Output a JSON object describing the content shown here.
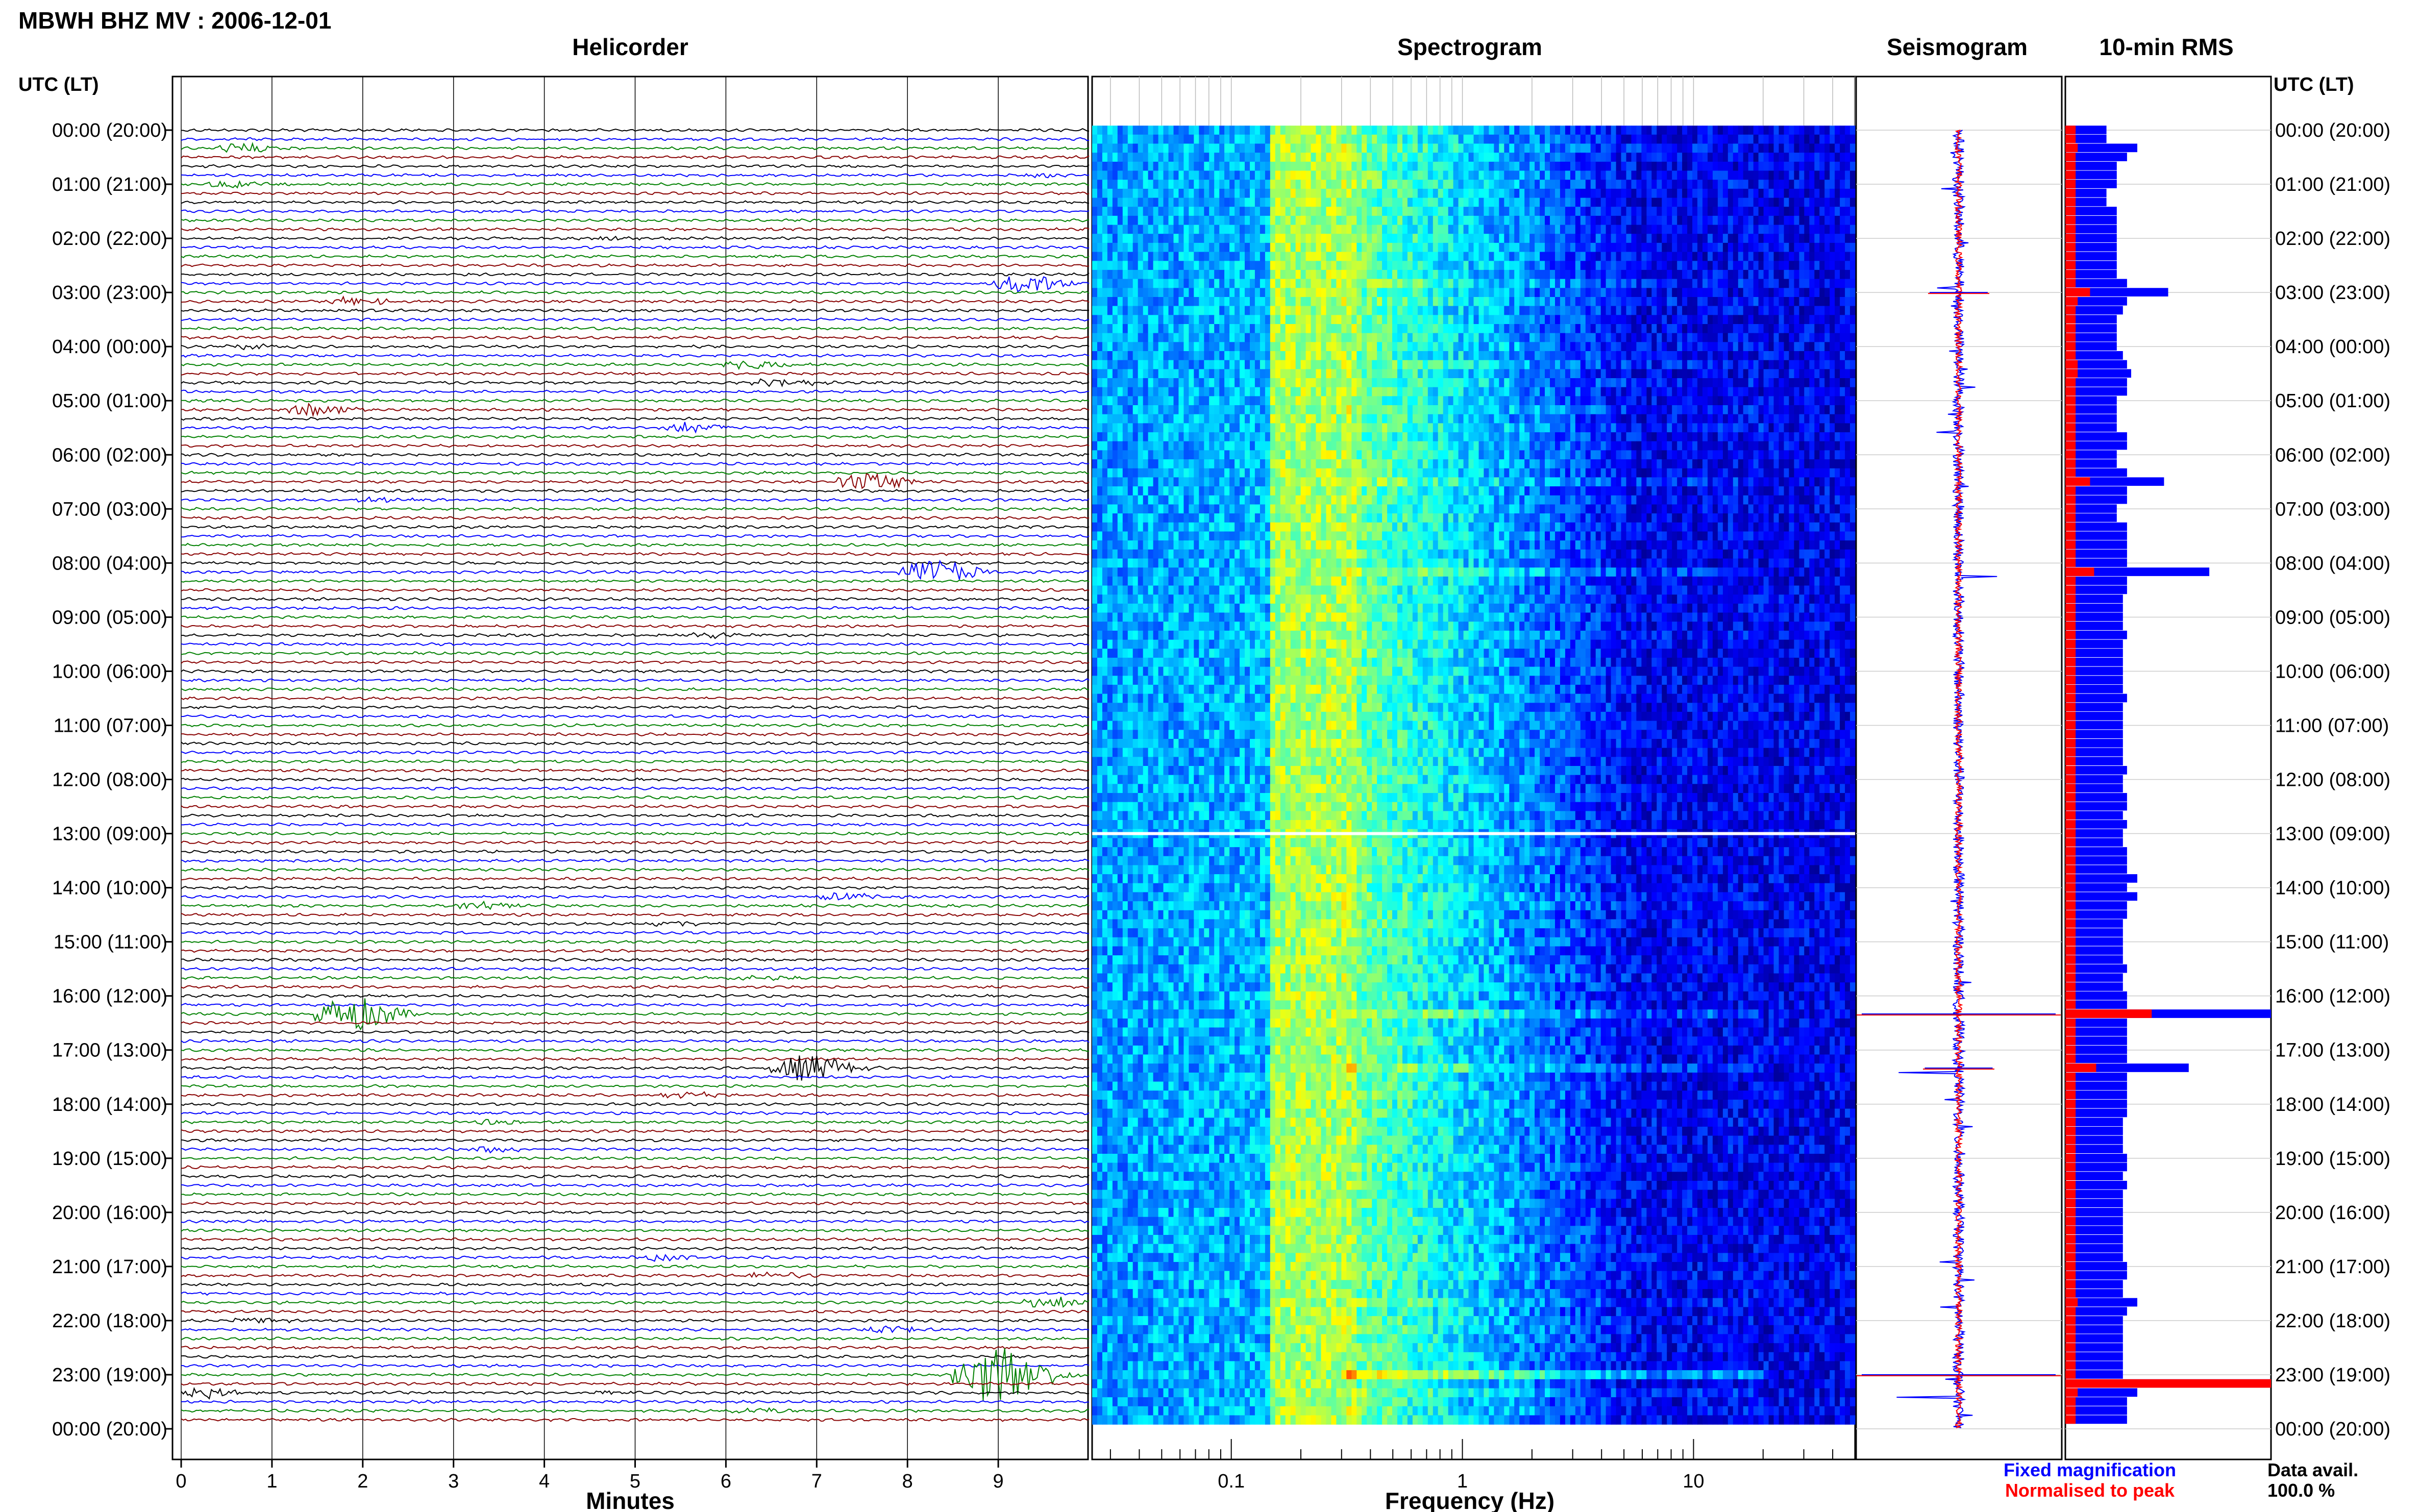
{
  "header": {
    "station_title": "MBWH BHZ MV : 2006-12-01"
  },
  "panels": {
    "helicorder": "Helicorder",
    "spectrogram": "Spectrogram",
    "seismogram": "Seismogram",
    "rms": "10-min RMS"
  },
  "time_axis_label": "UTC (LT)",
  "chart_data": [
    {
      "type": "line",
      "name": "helicorder",
      "title": "Helicorder",
      "xlabel": "Minutes",
      "ylabel": "UTC (LT)",
      "xlim": [
        0,
        10
      ],
      "x_ticks": [
        "0",
        "1",
        "2",
        "3",
        "4",
        "5",
        "6",
        "7",
        "8",
        "9"
      ],
      "row_minutes": 10,
      "rows": 144,
      "trace_colors": [
        "#000000",
        "#0000ff",
        "#008000",
        "#880000"
      ],
      "hour_labels": [
        "00:00 (20:00)",
        "01:00 (21:00)",
        "02:00 (22:00)",
        "03:00 (23:00)",
        "04:00 (00:00)",
        "05:00 (01:00)",
        "06:00 (02:00)",
        "07:00 (03:00)",
        "08:00 (04:00)",
        "09:00 (05:00)",
        "10:00 (06:00)",
        "11:00 (07:00)",
        "12:00 (08:00)",
        "13:00 (09:00)",
        "14:00 (10:00)",
        "15:00 (11:00)",
        "16:00 (12:00)",
        "17:00 (13:00)",
        "18:00 (14:00)",
        "19:00 (15:00)",
        "20:00 (16:00)",
        "21:00 (17:00)",
        "22:00 (18:00)",
        "23:00 (19:00)",
        "00:00 (20:00)"
      ],
      "events": [
        {
          "row": 2,
          "minute": 0.7,
          "amp": 1.5
        },
        {
          "row": 5,
          "minute": 9.5,
          "amp": 0.5
        },
        {
          "row": 6,
          "minute": 0.6,
          "amp": 1.2
        },
        {
          "row": 12,
          "minute": 4.8,
          "amp": 0.6
        },
        {
          "row": 17,
          "minute": 9.3,
          "amp": 2.8
        },
        {
          "row": 19,
          "minute": 1.9,
          "amp": 1.4
        },
        {
          "row": 24,
          "minute": 0.8,
          "amp": 1.1
        },
        {
          "row": 26,
          "minute": 6.3,
          "amp": 1.6
        },
        {
          "row": 28,
          "minute": 6.6,
          "amp": 1.3
        },
        {
          "row": 31,
          "minute": 1.5,
          "amp": 2.0
        },
        {
          "row": 33,
          "minute": 5.6,
          "amp": 1.6
        },
        {
          "row": 39,
          "minute": 7.6,
          "amp": 3.0
        },
        {
          "row": 41,
          "minute": 2.2,
          "amp": 0.8
        },
        {
          "row": 49,
          "minute": 8.3,
          "amp": 4.0
        },
        {
          "row": 56,
          "minute": 5.8,
          "amp": 0.9
        },
        {
          "row": 85,
          "minute": 7.3,
          "amp": 1.2
        },
        {
          "row": 86,
          "minute": 3.3,
          "amp": 1.4
        },
        {
          "row": 88,
          "minute": 5.4,
          "amp": 0.9
        },
        {
          "row": 94,
          "minute": 6.3,
          "amp": 0.7
        },
        {
          "row": 98,
          "minute": 1.9,
          "amp": 5.5
        },
        {
          "row": 104,
          "minute": 6.9,
          "amp": 4.2
        },
        {
          "row": 107,
          "minute": 5.6,
          "amp": 0.9
        },
        {
          "row": 110,
          "minute": 3.4,
          "amp": 0.9
        },
        {
          "row": 113,
          "minute": 3.4,
          "amp": 0.9
        },
        {
          "row": 125,
          "minute": 5.3,
          "amp": 1.0
        },
        {
          "row": 127,
          "minute": 6.5,
          "amp": 1.2
        },
        {
          "row": 130,
          "minute": 9.6,
          "amp": 1.8
        },
        {
          "row": 132,
          "minute": 0.8,
          "amp": 0.8
        },
        {
          "row": 133,
          "minute": 7.8,
          "amp": 1.0
        },
        {
          "row": 138,
          "minute": 9.0,
          "amp": 9.0
        },
        {
          "row": 140,
          "minute": 0.2,
          "amp": 1.8
        },
        {
          "row": 140,
          "minute": 4.7,
          "amp": 0.6
        },
        {
          "row": 142,
          "minute": 6.3,
          "amp": 1.1
        }
      ]
    },
    {
      "type": "heatmap",
      "name": "spectrogram",
      "title": "Spectrogram",
      "xlabel": "Frequency (Hz)",
      "x_scale": "log",
      "xlim": [
        0.025,
        50
      ],
      "x_ticks": [
        "0.1",
        "1",
        "10"
      ],
      "x_tick_values": [
        0.1,
        1,
        10
      ],
      "colormap": [
        "#00008f",
        "#0000ff",
        "#0080ff",
        "#00ffff",
        "#80ff80",
        "#ffff00",
        "#ff8000",
        "#ff0000"
      ],
      "peak_band_hz": [
        0.15,
        0.35
      ],
      "gap_row_utc_hour": 13
    },
    {
      "type": "line",
      "name": "seismogram",
      "title": "Seismogram",
      "series": [
        {
          "name": "Fixed magnification",
          "color": "#0000ff"
        },
        {
          "name": "Normalised to peak",
          "color": "#ff0000"
        }
      ]
    },
    {
      "type": "bar",
      "name": "rms",
      "title": "10-min RMS",
      "orientation": "horizontal",
      "xlim": [
        0,
        1
      ],
      "blue_rms": [
        0.2,
        0.2,
        0.35,
        0.3,
        0.25,
        0.25,
        0.25,
        0.2,
        0.2,
        0.25,
        0.25,
        0.25,
        0.25,
        0.25,
        0.25,
        0.25,
        0.25,
        0.3,
        0.5,
        0.3,
        0.28,
        0.25,
        0.25,
        0.25,
        0.25,
        0.28,
        0.3,
        0.32,
        0.3,
        0.3,
        0.25,
        0.25,
        0.25,
        0.25,
        0.3,
        0.3,
        0.25,
        0.25,
        0.3,
        0.48,
        0.3,
        0.3,
        0.25,
        0.25,
        0.3,
        0.3,
        0.3,
        0.3,
        0.3,
        0.7,
        0.3,
        0.3,
        0.28,
        0.28,
        0.28,
        0.28,
        0.3,
        0.28,
        0.28,
        0.28,
        0.28,
        0.28,
        0.28,
        0.3,
        0.28,
        0.28,
        0.28,
        0.28,
        0.28,
        0.28,
        0.28,
        0.3,
        0.28,
        0.28,
        0.3,
        0.3,
        0.28,
        0.3,
        0.28,
        0.28,
        0.3,
        0.3,
        0.3,
        0.35,
        0.3,
        0.35,
        0.3,
        0.3,
        0.28,
        0.28,
        0.28,
        0.28,
        0.28,
        0.3,
        0.28,
        0.28,
        0.3,
        0.3,
        1.0,
        0.3,
        0.3,
        0.3,
        0.3,
        0.3,
        0.6,
        0.3,
        0.3,
        0.3,
        0.3,
        0.3,
        0.28,
        0.28,
        0.28,
        0.28,
        0.3,
        0.3,
        0.28,
        0.3,
        0.28,
        0.28,
        0.28,
        0.28,
        0.28,
        0.28,
        0.28,
        0.28,
        0.3,
        0.3,
        0.28,
        0.28,
        0.35,
        0.3,
        0.28,
        0.28,
        0.28,
        0.28,
        0.28,
        0.28,
        0.28,
        1.0,
        0.35,
        0.3,
        0.3,
        0.3
      ],
      "red_rms": [
        0.05,
        0.05,
        0.06,
        0.05,
        0.05,
        0.05,
        0.05,
        0.05,
        0.05,
        0.05,
        0.05,
        0.05,
        0.05,
        0.05,
        0.05,
        0.05,
        0.05,
        0.05,
        0.12,
        0.06,
        0.05,
        0.05,
        0.05,
        0.05,
        0.05,
        0.05,
        0.06,
        0.06,
        0.05,
        0.05,
        0.05,
        0.05,
        0.05,
        0.05,
        0.05,
        0.05,
        0.05,
        0.05,
        0.05,
        0.12,
        0.05,
        0.05,
        0.05,
        0.05,
        0.05,
        0.05,
        0.05,
        0.05,
        0.05,
        0.14,
        0.05,
        0.05,
        0.05,
        0.05,
        0.05,
        0.05,
        0.05,
        0.05,
        0.05,
        0.05,
        0.05,
        0.05,
        0.05,
        0.05,
        0.05,
        0.05,
        0.05,
        0.05,
        0.05,
        0.05,
        0.05,
        0.05,
        0.05,
        0.05,
        0.05,
        0.05,
        0.05,
        0.05,
        0.05,
        0.05,
        0.05,
        0.05,
        0.05,
        0.05,
        0.05,
        0.05,
        0.05,
        0.05,
        0.05,
        0.05,
        0.05,
        0.05,
        0.05,
        0.05,
        0.05,
        0.05,
        0.05,
        0.05,
        0.42,
        0.05,
        0.05,
        0.05,
        0.05,
        0.05,
        0.15,
        0.05,
        0.05,
        0.05,
        0.05,
        0.05,
        0.05,
        0.05,
        0.05,
        0.05,
        0.05,
        0.05,
        0.05,
        0.05,
        0.05,
        0.05,
        0.05,
        0.05,
        0.05,
        0.05,
        0.05,
        0.05,
        0.05,
        0.05,
        0.05,
        0.05,
        0.06,
        0.05,
        0.05,
        0.05,
        0.05,
        0.05,
        0.05,
        0.05,
        0.05,
        1.0,
        0.06,
        0.05,
        0.05,
        0.05
      ]
    }
  ],
  "legend": {
    "fixed": "Fixed magnification",
    "normalised": "Normalised to peak"
  },
  "data_availability": {
    "label": "Data avail.",
    "value": "100.0 %"
  }
}
